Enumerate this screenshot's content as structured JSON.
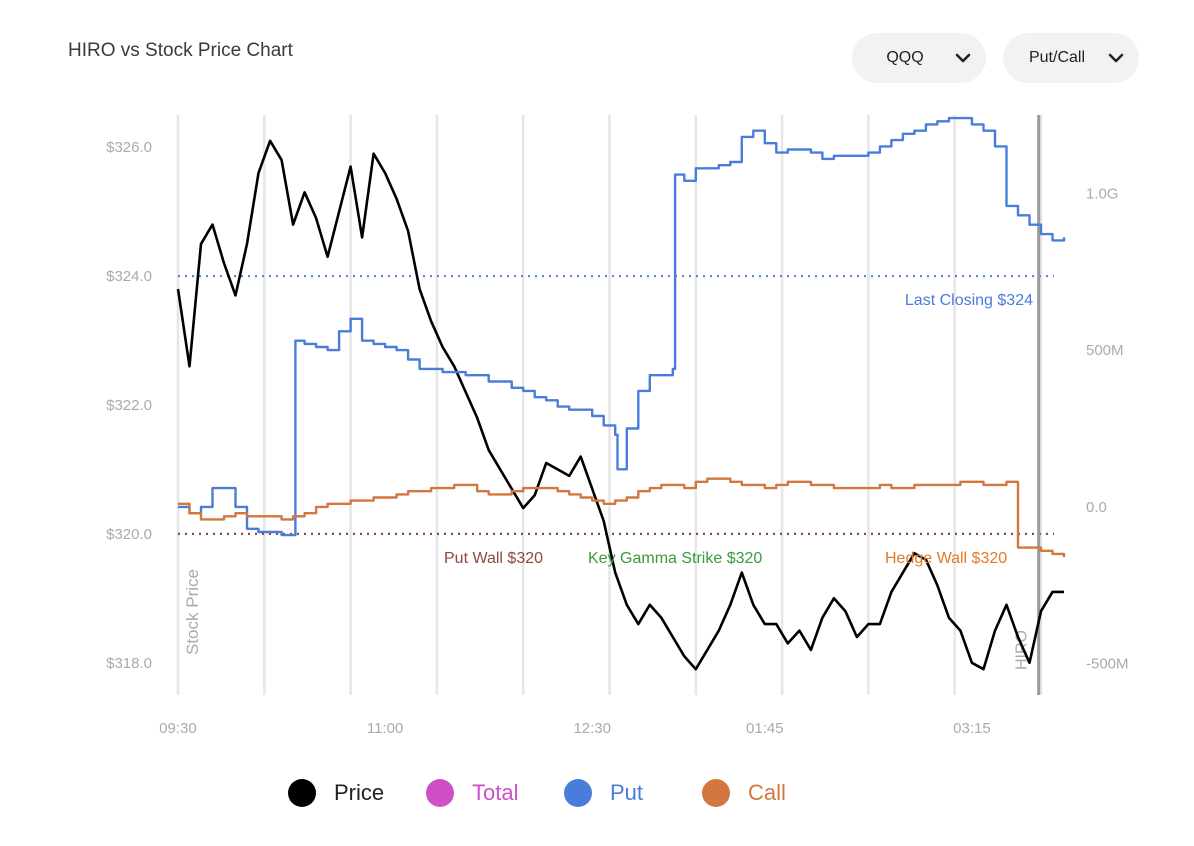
{
  "header": {
    "title": "HIRO vs Stock Price Chart",
    "ticker_select": {
      "value": "QQQ"
    },
    "mode_select": {
      "value": "Put/Call"
    }
  },
  "colors": {
    "price": "#000000",
    "total": "#d04fc9",
    "put": "#4a7ddb",
    "call": "#d2773f",
    "put_wall": "#8a4a3c",
    "key_gamma": "#3a9a3a",
    "hedge_wall": "#e07b2c",
    "last_closing": "#4a7ddb",
    "axis_text": "#aaaaaa",
    "grid": "#e6e6e6"
  },
  "legend": [
    {
      "key": "price",
      "label": "Price",
      "color": "#000000"
    },
    {
      "key": "total",
      "label": "Total",
      "color": "#d04fc9"
    },
    {
      "key": "put",
      "label": "Put",
      "color": "#4a7ddb"
    },
    {
      "key": "call",
      "label": "Call",
      "color": "#d2773f"
    }
  ],
  "chart_data": {
    "type": "line",
    "title": "HIRO vs Stock Price Chart",
    "x_ticks": [
      "09:30",
      "11:00",
      "12:30",
      "01:45",
      "03:15"
    ],
    "x_tick_minutes": [
      0,
      90,
      180,
      255,
      345
    ],
    "x_range_minutes": [
      0,
      385
    ],
    "y_left": {
      "label": "Stock Price",
      "ticks": [
        "$318.0",
        "$320.0",
        "$322.0",
        "$324.0",
        "$326.0"
      ],
      "tick_values": [
        318,
        320,
        322,
        324,
        326
      ],
      "range": [
        317.5,
        326.5
      ]
    },
    "y_right": {
      "label": "HIRO",
      "ticks": [
        "-500M",
        "0.0",
        "500M",
        "1.0G"
      ],
      "tick_values": [
        -500,
        0,
        500,
        1000
      ],
      "unit": "M",
      "range": [
        -600,
        1250
      ]
    },
    "reference_lines": [
      {
        "name": "Last Closing",
        "label": "Last Closing $324",
        "value": 324,
        "axis": "left",
        "style": "dotted",
        "color": "#4a7ddb"
      },
      {
        "name": "Put Wall",
        "label": "Put Wall $320",
        "value": 320,
        "axis": "left",
        "style": "dotted",
        "color": "#8a4a3c"
      },
      {
        "name": "Key Gamma Strike",
        "label": "Key Gamma Strike $320",
        "value": 320,
        "axis": "left",
        "color": "#3a9a3a"
      },
      {
        "name": "Hedge Wall",
        "label": "Hedge Wall $320",
        "value": 320,
        "axis": "left",
        "color": "#e07b2c"
      }
    ],
    "current_time_minutes": 374,
    "series": [
      {
        "name": "Price",
        "axis": "left",
        "color": "#000000",
        "x": [
          0,
          5,
          10,
          15,
          20,
          25,
          30,
          35,
          40,
          45,
          50,
          55,
          60,
          65,
          70,
          75,
          80,
          85,
          90,
          95,
          100,
          105,
          110,
          115,
          120,
          125,
          130,
          135,
          140,
          145,
          150,
          155,
          160,
          165,
          170,
          175,
          180,
          185,
          190,
          195,
          200,
          205,
          210,
          215,
          220,
          225,
          230,
          235,
          240,
          245,
          250,
          255,
          260,
          265,
          270,
          275,
          280,
          285,
          290,
          295,
          300,
          305,
          310,
          315,
          320,
          325,
          330,
          335,
          340,
          345,
          350,
          355,
          360,
          365,
          370,
          375,
          380,
          385
        ],
        "values": [
          323.8,
          322.6,
          324.5,
          324.8,
          324.2,
          323.7,
          324.5,
          325.6,
          326.1,
          325.8,
          324.8,
          325.3,
          324.9,
          324.3,
          325.0,
          325.7,
          324.6,
          325.9,
          325.6,
          325.2,
          324.7,
          323.8,
          323.3,
          322.9,
          322.6,
          322.2,
          321.8,
          321.3,
          321.0,
          320.7,
          320.4,
          320.6,
          321.1,
          321.0,
          320.9,
          321.2,
          320.7,
          320.2,
          319.4,
          318.9,
          318.6,
          318.9,
          318.7,
          318.4,
          318.1,
          317.9,
          318.2,
          318.5,
          318.9,
          319.4,
          318.9,
          318.6,
          318.6,
          318.3,
          318.5,
          318.2,
          318.7,
          319.0,
          318.8,
          318.4,
          318.6,
          318.6,
          319.1,
          319.4,
          319.7,
          319.6,
          319.2,
          318.7,
          318.5,
          318.0,
          317.9,
          318.5,
          318.9,
          318.4,
          318.0,
          318.8,
          319.1,
          319.1
        ]
      },
      {
        "name": "Put",
        "axis": "right",
        "color": "#4a7ddb",
        "x": [
          0,
          5,
          10,
          15,
          20,
          25,
          30,
          35,
          40,
          45,
          50,
          51,
          55,
          60,
          65,
          70,
          75,
          80,
          85,
          90,
          95,
          100,
          105,
          110,
          115,
          120,
          125,
          130,
          135,
          140,
          145,
          150,
          155,
          160,
          165,
          170,
          175,
          180,
          185,
          190,
          191,
          195,
          200,
          205,
          210,
          215,
          216,
          220,
          225,
          230,
          235,
          240,
          245,
          250,
          255,
          260,
          265,
          270,
          275,
          280,
          285,
          290,
          295,
          300,
          305,
          310,
          315,
          320,
          325,
          330,
          335,
          340,
          345,
          350,
          355,
          360,
          365,
          370,
          375,
          380,
          385
        ],
        "values": [
          0,
          -20,
          0,
          60,
          60,
          0,
          -70,
          -80,
          -80,
          -90,
          -90,
          530,
          520,
          510,
          500,
          560,
          600,
          530,
          520,
          510,
          500,
          470,
          440,
          440,
          430,
          430,
          420,
          420,
          400,
          400,
          380,
          370,
          350,
          340,
          320,
          310,
          310,
          290,
          260,
          230,
          120,
          250,
          370,
          420,
          420,
          440,
          1060,
          1040,
          1080,
          1080,
          1090,
          1100,
          1180,
          1200,
          1160,
          1130,
          1140,
          1140,
          1130,
          1110,
          1120,
          1120,
          1120,
          1130,
          1150,
          1170,
          1190,
          1200,
          1220,
          1230,
          1240,
          1240,
          1220,
          1200,
          1150,
          960,
          930,
          900,
          870,
          850,
          860
        ]
      },
      {
        "name": "Call",
        "axis": "right",
        "color": "#d2773f",
        "x": [
          0,
          5,
          10,
          15,
          20,
          25,
          30,
          35,
          40,
          45,
          50,
          55,
          60,
          65,
          70,
          75,
          80,
          85,
          90,
          95,
          100,
          105,
          110,
          115,
          120,
          125,
          130,
          135,
          140,
          145,
          150,
          155,
          160,
          165,
          170,
          175,
          180,
          185,
          190,
          195,
          200,
          205,
          210,
          215,
          220,
          225,
          230,
          235,
          240,
          245,
          250,
          255,
          260,
          265,
          270,
          275,
          280,
          285,
          290,
          295,
          300,
          305,
          310,
          315,
          320,
          325,
          330,
          335,
          340,
          345,
          350,
          355,
          360,
          361,
          365,
          370,
          375,
          380,
          385
        ],
        "values": [
          10,
          -20,
          -40,
          -40,
          -30,
          -20,
          -30,
          -30,
          -30,
          -40,
          -30,
          -20,
          0,
          10,
          10,
          20,
          20,
          30,
          30,
          40,
          50,
          50,
          60,
          60,
          70,
          70,
          50,
          40,
          40,
          50,
          60,
          60,
          60,
          50,
          40,
          30,
          20,
          10,
          20,
          30,
          50,
          60,
          70,
          70,
          60,
          80,
          90,
          90,
          80,
          70,
          70,
          60,
          70,
          80,
          80,
          70,
          70,
          60,
          60,
          60,
          60,
          70,
          60,
          60,
          70,
          70,
          70,
          70,
          80,
          80,
          70,
          70,
          80,
          80,
          -130,
          -130,
          -140,
          -150,
          -160
        ]
      }
    ]
  }
}
